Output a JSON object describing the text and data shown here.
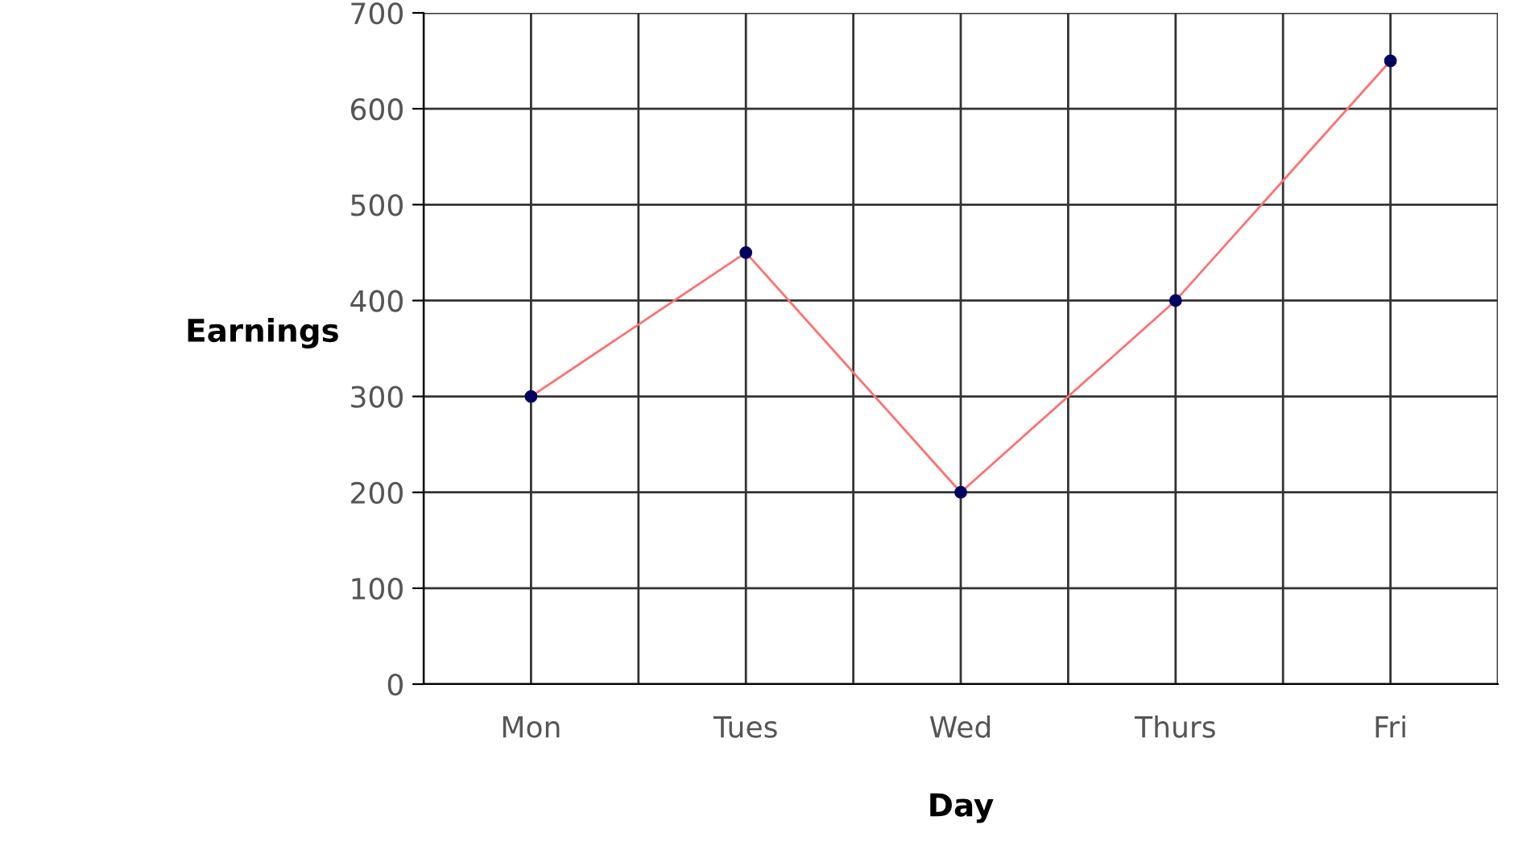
{
  "chart_data": {
    "type": "line",
    "xlabel": "Day",
    "ylabel": "Earnings",
    "categories": [
      "Mon",
      "Tues",
      "Wed",
      "Thurs",
      "Fri"
    ],
    "series": [
      {
        "color": "#ff7070",
        "colors": [
          "#000060",
          "#000060",
          "#000060",
          "#000060",
          "#000060"
        ],
        "values": [
          300,
          450,
          200,
          400,
          650
        ]
      }
    ],
    "ylim": [
      0,
      700
    ],
    "yticks": [
      0,
      100,
      200,
      300,
      400,
      500,
      600,
      700
    ],
    "grid": true,
    "marker": "circle",
    "line_style": "solid"
  }
}
